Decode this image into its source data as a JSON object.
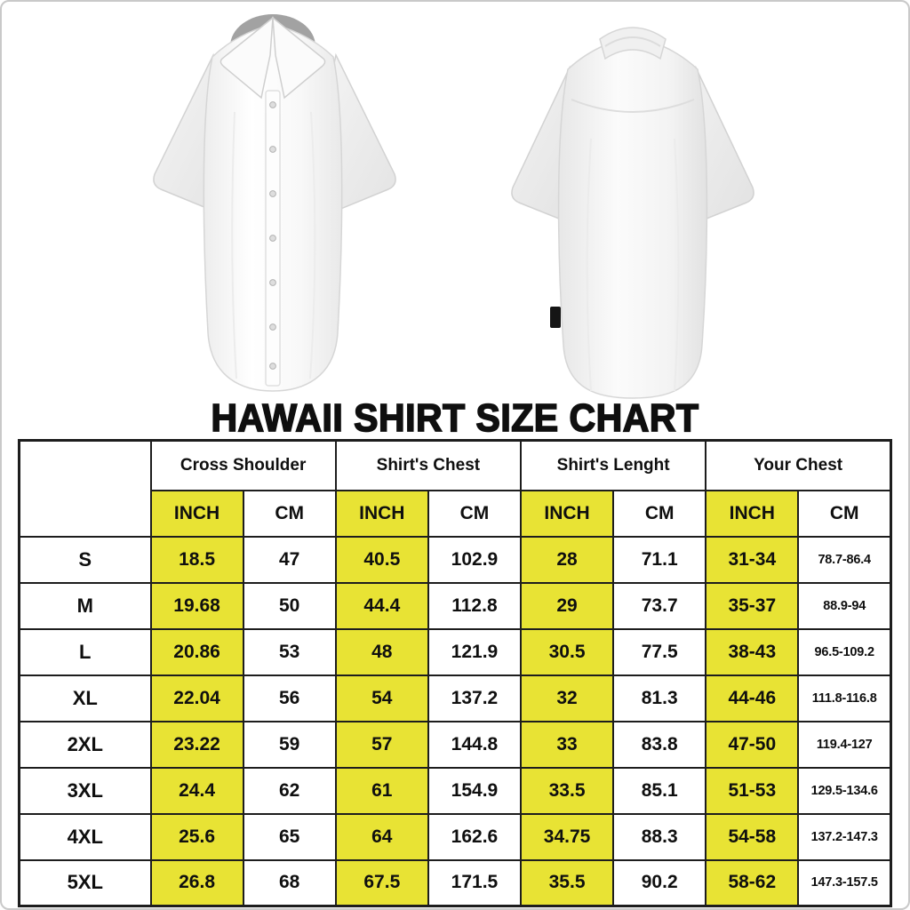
{
  "page": {
    "title": "HAWAII SHIRT SIZE CHART",
    "images": {
      "front_shirt": "white-short-sleeve-button-shirt-front",
      "back_shirt": "white-short-sleeve-button-shirt-back"
    }
  },
  "colors": {
    "highlight_yellow": "#e8e334",
    "table_border_black": "#1d1d1d",
    "text_black": "#0f0f0f",
    "page_frame_gray": "#c9c9c9"
  },
  "chart_data": {
    "type": "table",
    "title": "HAWAII SHIRT SIZE CHART",
    "column_groups": [
      "Cross Shoulder",
      "Shirt's Chest",
      "Shirt's Lenght",
      "Your Chest"
    ],
    "units_per_group": [
      "INCH",
      "CM"
    ],
    "inch_columns_highlighted": true,
    "row_labels": [
      "S",
      "M",
      "L",
      "XL",
      "2XL",
      "3XL",
      "4XL",
      "5XL"
    ],
    "rows": [
      {
        "size": "S",
        "values": [
          "18.5",
          "47",
          "40.5",
          "102.9",
          "28",
          "71.1",
          "31-34",
          "78.7-86.4"
        ]
      },
      {
        "size": "M",
        "values": [
          "19.68",
          "50",
          "44.4",
          "112.8",
          "29",
          "73.7",
          "35-37",
          "88.9-94"
        ]
      },
      {
        "size": "L",
        "values": [
          "20.86",
          "53",
          "48",
          "121.9",
          "30.5",
          "77.5",
          "38-43",
          "96.5-109.2"
        ]
      },
      {
        "size": "XL",
        "values": [
          "22.04",
          "56",
          "54",
          "137.2",
          "32",
          "81.3",
          "44-46",
          "111.8-116.8"
        ]
      },
      {
        "size": "2XL",
        "values": [
          "23.22",
          "59",
          "57",
          "144.8",
          "33",
          "83.8",
          "47-50",
          "119.4-127"
        ]
      },
      {
        "size": "3XL",
        "values": [
          "24.4",
          "62",
          "61",
          "154.9",
          "33.5",
          "85.1",
          "51-53",
          "129.5-134.6"
        ]
      },
      {
        "size": "4XL",
        "values": [
          "25.6",
          "65",
          "64",
          "162.6",
          "34.75",
          "88.3",
          "54-58",
          "137.2-147.3"
        ]
      },
      {
        "size": "5XL",
        "values": [
          "26.8",
          "68",
          "67.5",
          "171.5",
          "35.5",
          "90.2",
          "58-62",
          "147.3-157.5"
        ]
      }
    ]
  }
}
